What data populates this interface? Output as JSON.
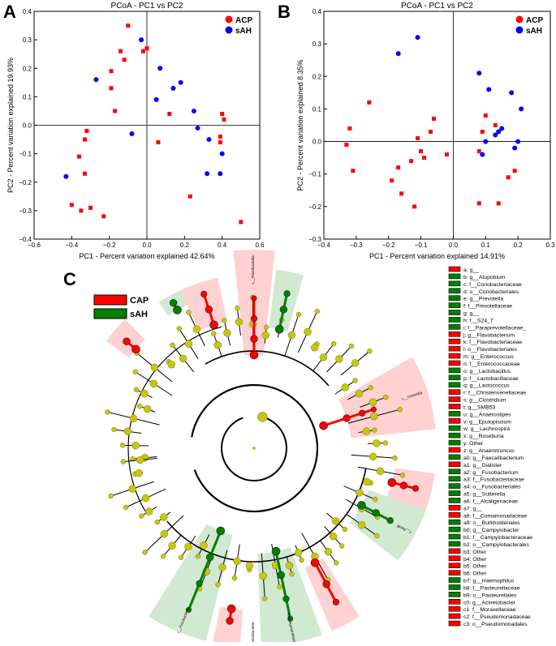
{
  "chart_data": [
    {
      "panel": "A",
      "type": "scatter",
      "title": "PCoA - PC1 vs PC2",
      "xlabel": "PC1 - Percent variation explained 42.64%",
      "ylabel": "PC2 - Percent variation explained 19.93%",
      "xlim": [
        -0.6,
        0.6
      ],
      "ylim": [
        -0.4,
        0.4
      ],
      "xticks": [
        "−0.6",
        "−0.4",
        "−0.2",
        "0.0",
        "0.2",
        "0.4",
        "0.6"
      ],
      "yticks": [
        "0.4",
        "0.3",
        "0.2",
        "0.1",
        "0.0",
        "−0.1",
        "−0.2",
        "−0.3",
        "−0.4"
      ],
      "legend_position": "top-right",
      "series": [
        {
          "name": "ACP",
          "color": "#ff0000",
          "marker": "square",
          "x": [
            -0.1,
            -0.14,
            -0.12,
            -0.02,
            -0.19,
            -0.17,
            -0.19,
            0.0,
            0.12,
            0.06,
            0.4,
            0.41,
            0.39,
            0.39,
            -0.32,
            -0.33,
            -0.36,
            -0.33,
            -0.35,
            -0.4,
            -0.3,
            -0.23,
            0.23,
            0.5
          ],
          "y": [
            0.35,
            0.26,
            0.23,
            0.26,
            0.19,
            0.05,
            0.13,
            0.27,
            0.04,
            -0.06,
            0.04,
            0.02,
            -0.04,
            -0.06,
            -0.02,
            -0.05,
            -0.11,
            -0.17,
            -0.3,
            -0.28,
            -0.29,
            -0.32,
            -0.25,
            -0.34
          ]
        },
        {
          "name": "sAH",
          "color": "#0000ff",
          "marker": "circle",
          "x": [
            -0.03,
            0.07,
            -0.27,
            0.14,
            0.18,
            0.05,
            0.25,
            0.27,
            -0.08,
            0.33,
            0.4,
            0.32,
            0.39,
            -0.43
          ],
          "y": [
            0.3,
            0.2,
            0.16,
            0.13,
            0.15,
            0.09,
            0.05,
            -0.01,
            -0.03,
            -0.05,
            -0.1,
            -0.17,
            -0.17,
            -0.18
          ]
        }
      ]
    },
    {
      "panel": "B",
      "type": "scatter",
      "title": "PCoA - PC1 vs PC2",
      "xlabel": "PC1 - Percent variation explained 14.91%",
      "ylabel": "PC2 - Percent variation explained 8.35%",
      "xlim": [
        -0.4,
        0.3
      ],
      "ylim": [
        -0.3,
        0.4
      ],
      "xticks": [
        "−0.4",
        "−0.3",
        "−0.2",
        "−0.1",
        "0.0",
        "0.1",
        "0.2",
        "0.3"
      ],
      "yticks": [
        "0.4",
        "0.3",
        "0.2",
        "0.1",
        "0.0",
        "−0.1",
        "−0.2",
        "−0.3"
      ],
      "legend_position": "top-right",
      "series": [
        {
          "name": "ACP",
          "color": "#ff0000",
          "marker": "square",
          "x": [
            -0.32,
            -0.33,
            -0.31,
            -0.26,
            -0.11,
            -0.1,
            -0.09,
            -0.07,
            -0.06,
            -0.02,
            -0.17,
            -0.16,
            -0.19,
            -0.12,
            -0.13,
            0.1,
            0.08,
            0.13,
            0.09,
            0.17,
            0.19,
            0.14,
            0.08
          ],
          "y": [
            0.04,
            -0.01,
            -0.09,
            0.12,
            0.01,
            -0.03,
            -0.05,
            0.03,
            0.07,
            -0.04,
            -0.08,
            -0.16,
            -0.12,
            -0.2,
            -0.06,
            0.08,
            -0.03,
            0.05,
            0.03,
            -0.11,
            -0.09,
            -0.19,
            -0.19
          ]
        },
        {
          "name": "sAH",
          "color": "#0000ff",
          "marker": "circle",
          "x": [
            -0.11,
            -0.17,
            0.08,
            0.11,
            0.18,
            0.21,
            0.15,
            0.14,
            0.13,
            0.1,
            0.2,
            0.19,
            0.09
          ],
          "y": [
            0.32,
            0.27,
            0.21,
            0.16,
            0.15,
            0.1,
            0.04,
            0.03,
            0.02,
            0.0,
            0.0,
            -0.02,
            -0.04
          ]
        }
      ]
    }
  ],
  "panel_labels": {
    "a": "A",
    "b": "B",
    "c": "C"
  },
  "cladogram": {
    "legend": [
      {
        "name": "CAP",
        "color": "#ff0000"
      },
      {
        "name": "sAH",
        "color": "#008000"
      }
    ],
    "clade_labels": [
      "c__Flavobacteriia",
      "c__Clostridia",
      "c__Bacilli",
      "c__Betaproteobacteria",
      "c__Epsilonproteobacteria",
      "c__Fusobacteria"
    ],
    "key": [
      {
        "code": "a",
        "taxon": "g__",
        "group": "CAP"
      },
      {
        "code": "b",
        "taxon": "g__Atopobium",
        "group": "sAH"
      },
      {
        "code": "c",
        "taxon": "f__Coriobacteriaceae",
        "group": "sAH"
      },
      {
        "code": "d",
        "taxon": "o__Coriobacteriales",
        "group": "sAH"
      },
      {
        "code": "e",
        "taxon": "g__Prevotella",
        "group": "sAH"
      },
      {
        "code": "f",
        "taxon": "f__Prevotellaceae",
        "group": "sAH"
      },
      {
        "code": "g",
        "taxon": "g__",
        "group": "sAH"
      },
      {
        "code": "h",
        "taxon": "f__S24_7",
        "group": "sAH"
      },
      {
        "code": "i",
        "taxon": "f__Paraprevotellaceae_",
        "group": "sAH"
      },
      {
        "code": "j",
        "taxon": "g__Flavobacterium",
        "group": "CAP"
      },
      {
        "code": "k",
        "taxon": "f__Flavobacteriaceae",
        "group": "CAP"
      },
      {
        "code": "l",
        "taxon": "o__Flavobacteriales",
        "group": "CAP"
      },
      {
        "code": "m",
        "taxon": "g__Enterococcus",
        "group": "CAP"
      },
      {
        "code": "n",
        "taxon": "f__Enterococcaceae",
        "group": "CAP"
      },
      {
        "code": "o",
        "taxon": "g__Lactobacillus",
        "group": "sAH"
      },
      {
        "code": "p",
        "taxon": "f__Lactobacillaceae",
        "group": "sAH"
      },
      {
        "code": "q",
        "taxon": "g__Lactococcus",
        "group": "sAH"
      },
      {
        "code": "r",
        "taxon": "f__Christensenellaceae",
        "group": "CAP"
      },
      {
        "code": "s",
        "taxon": "g__Clostridium",
        "group": "CAP"
      },
      {
        "code": "t",
        "taxon": "g__SMB53",
        "group": "CAP"
      },
      {
        "code": "u",
        "taxon": "g__Anaerostipes",
        "group": "sAH"
      },
      {
        "code": "v",
        "taxon": "g__Epulopiscium",
        "group": "CAP"
      },
      {
        "code": "w",
        "taxon": "g__Lachnospira",
        "group": "sAH"
      },
      {
        "code": "x",
        "taxon": "g__Roseburia",
        "group": "sAH"
      },
      {
        "code": "y",
        "taxon": "Other",
        "group": "sAH"
      },
      {
        "code": "z",
        "taxon": "g__Anaerotruncus",
        "group": "CAP"
      },
      {
        "code": "a0",
        "taxon": "g__Faecalibacterium",
        "group": "sAH"
      },
      {
        "code": "a1",
        "taxon": "g__Dialister",
        "group": "CAP"
      },
      {
        "code": "a2",
        "taxon": "g__Fusobacterium",
        "group": "sAH"
      },
      {
        "code": "a3",
        "taxon": "f__Fusobacteriaceae",
        "group": "sAH"
      },
      {
        "code": "a4",
        "taxon": "o__Fusobacteriales",
        "group": "sAH"
      },
      {
        "code": "a5",
        "taxon": "g__Sutterella",
        "group": "sAH"
      },
      {
        "code": "a6",
        "taxon": "f__Alcaligenaceae",
        "group": "sAH"
      },
      {
        "code": "a7",
        "taxon": "g__",
        "group": "CAP"
      },
      {
        "code": "a8",
        "taxon": "f__Comamonadaceae",
        "group": "CAP"
      },
      {
        "code": "a9",
        "taxon": "o__Burkholderiales",
        "group": "sAH"
      },
      {
        "code": "b0",
        "taxon": "g__Campylobacter",
        "group": "sAH"
      },
      {
        "code": "b1",
        "taxon": "f__Campylobacteraceae",
        "group": "sAH"
      },
      {
        "code": "b2",
        "taxon": "o__Campylobacterales",
        "group": "sAH"
      },
      {
        "code": "b3",
        "taxon": "Other",
        "group": "CAP"
      },
      {
        "code": "b4",
        "taxon": "Other",
        "group": "CAP"
      },
      {
        "code": "b5",
        "taxon": "Other",
        "group": "CAP"
      },
      {
        "code": "b6",
        "taxon": "Other",
        "group": "CAP"
      },
      {
        "code": "b7",
        "taxon": "g__Haemophilus",
        "group": "sAH"
      },
      {
        "code": "b8",
        "taxon": "f__Pasteurellaceae",
        "group": "sAH"
      },
      {
        "code": "b9",
        "taxon": "o__Pasteurellales",
        "group": "sAH"
      },
      {
        "code": "c0",
        "taxon": "g__Acinetobacter",
        "group": "CAP"
      },
      {
        "code": "c1",
        "taxon": "f__Moraxellaceae",
        "group": "CAP"
      },
      {
        "code": "c2",
        "taxon": "f__Pseudomonadaceae",
        "group": "CAP"
      },
      {
        "code": "c3",
        "taxon": "o__Pseudomonadales",
        "group": "CAP"
      }
    ]
  }
}
